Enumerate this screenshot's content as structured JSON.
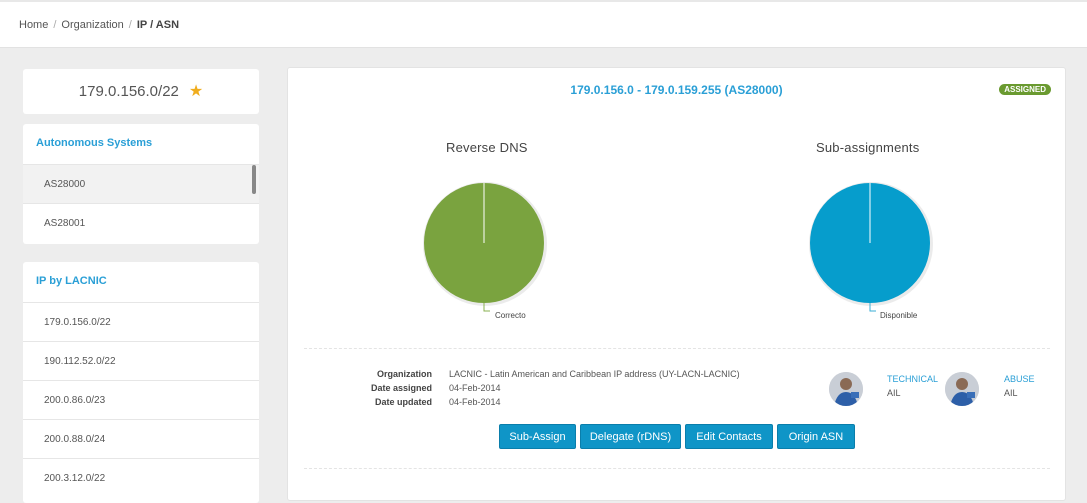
{
  "breadcrumb": {
    "home": "Home",
    "organization": "Organization",
    "current": "IP / ASN",
    "separator": "/"
  },
  "prefix": {
    "title": "179.0.156.0/22",
    "star_icon": "star-icon"
  },
  "autonomous_systems": {
    "title": "Autonomous Systems",
    "items": [
      "AS28000",
      "AS28001"
    ]
  },
  "ip_by_lacnic": {
    "title": "IP by LACNIC",
    "items": [
      "179.0.156.0/22",
      "190.112.52.0/22",
      "200.0.86.0/23",
      "200.0.88.0/24",
      "200.3.12.0/22"
    ]
  },
  "detail": {
    "range_title": "179.0.156.0 - 179.0.159.255 (AS28000)",
    "status_badge": "ASSIGNED",
    "reverse_dns": {
      "title": "Reverse DNS",
      "slice_label": "Correcto",
      "color": "#7aa33f"
    },
    "sub_assignments": {
      "title": "Sub-assignments",
      "slice_label": "Disponible",
      "color": "#069dcc"
    },
    "info": {
      "organization_label": "Organization",
      "organization_value": "LACNIC - Latin American and Caribbean IP address (UY-LACN-LACNIC)",
      "date_assigned_label": "Date assigned",
      "date_assigned_value": "04-Feb-2014",
      "date_updated_label": "Date updated",
      "date_updated_value": "04-Feb-2014"
    },
    "contacts": [
      {
        "role": "TECHNICAL",
        "id": "AIL"
      },
      {
        "role": "ABUSE",
        "id": "AIL"
      }
    ],
    "buttons": {
      "sub_assign": "Sub-Assign",
      "delegate": "Delegate (rDNS)",
      "edit_contacts": "Edit Contacts",
      "origin_asn": "Origin ASN"
    }
  },
  "colors": {
    "accent": "#2a9fd6",
    "button": "#0f95c7",
    "badge": "#6a9a30",
    "star": "#f0ad1e"
  }
}
